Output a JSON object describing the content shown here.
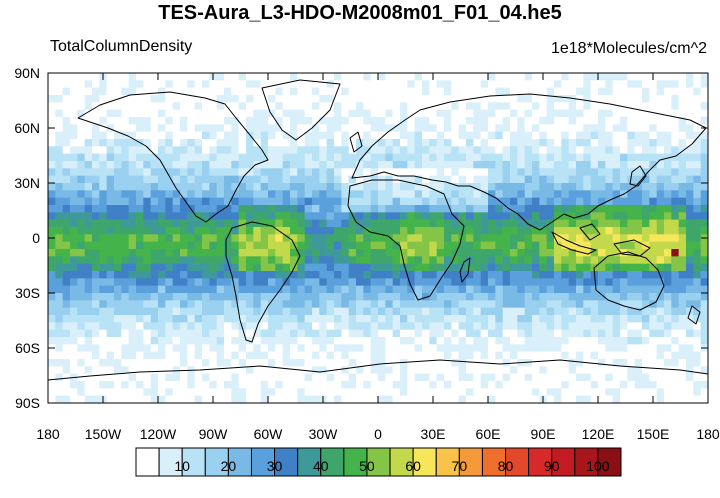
{
  "title": "TES-Aura_L3-HDO-M2008m01_F01_04.he5",
  "variable_label": "TotalColumnDensity",
  "units_label": "1e18*Molecules/cm^2",
  "lat_labels": [
    "90N",
    "60N",
    "30N",
    "0",
    "30S",
    "60S",
    "90S"
  ],
  "lon_labels": [
    "180",
    "150W",
    "120W",
    "90W",
    "60W",
    "30W",
    "0",
    "30E",
    "60E",
    "90E",
    "120E",
    "150E",
    "180"
  ],
  "colorbar": {
    "colors": [
      "#ffffff",
      "#d9f0fb",
      "#b8e2f5",
      "#9ad0ef",
      "#78b9e5",
      "#5aa0dc",
      "#3f80c6",
      "#3e9a9a",
      "#3ea66a",
      "#44b44a",
      "#84c446",
      "#c2d94c",
      "#f8e65a",
      "#f9c24a",
      "#f59a3a",
      "#ee6e2c",
      "#e4482a",
      "#d62a2a",
      "#c21c22",
      "#a8161b",
      "#8a1015"
    ],
    "tick_labels": [
      "10",
      "20",
      "30",
      "40",
      "50",
      "60",
      "70",
      "80",
      "90",
      "100"
    ]
  },
  "chart_data": {
    "type": "heatmap",
    "title": "TES-Aura_L3-HDO-M2008m01_F01_04.he5",
    "variable": "TotalColumnDensity",
    "units": "1e18*Molecules/cm^2",
    "lon_range": [
      -180,
      180
    ],
    "lat_range": [
      -90,
      90
    ],
    "levels": [
      5,
      10,
      15,
      20,
      25,
      30,
      35,
      40,
      45,
      50,
      55,
      60,
      65,
      70,
      75,
      80,
      85,
      90,
      95,
      100
    ],
    "lat_profile": [
      {
        "lat": 70,
        "value": 3
      },
      {
        "lat": 55,
        "value": 6
      },
      {
        "lat": 40,
        "value": 12
      },
      {
        "lat": 30,
        "value": 18
      },
      {
        "lat": 20,
        "value": 26
      },
      {
        "lat": 10,
        "value": 38
      },
      {
        "lat": 0,
        "value": 48
      },
      {
        "lat": -10,
        "value": 46
      },
      {
        "lat": -20,
        "value": 32
      },
      {
        "lat": -30,
        "value": 22
      },
      {
        "lat": -40,
        "value": 14
      },
      {
        "lat": -50,
        "value": 8
      },
      {
        "lat": -60,
        "value": 5
      },
      {
        "lat": -70,
        "value": 3
      }
    ],
    "max_value": 100,
    "max_location": {
      "lon": 163,
      "lat": -8
    }
  }
}
